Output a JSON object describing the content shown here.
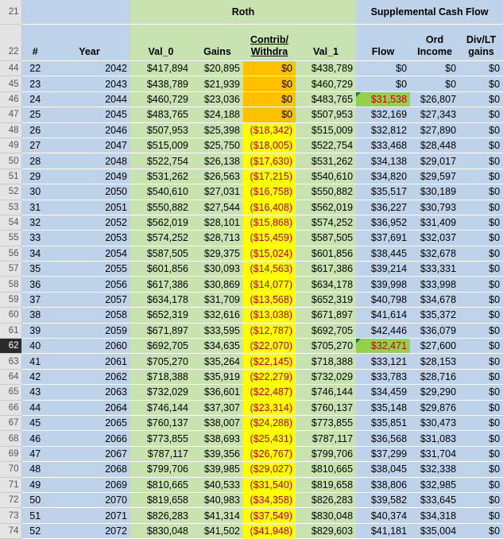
{
  "headers": {
    "row_nums": [
      "21",
      "22"
    ],
    "roth_group": "Roth",
    "supp_group": "Supplemental Cash Flow",
    "cols": [
      "#",
      "Year",
      "Val_0",
      "Gains",
      "Contrib/\nWithdra",
      "Val_1",
      "Flow",
      "Ord\nIncome",
      "Div/LT\ngains"
    ]
  },
  "rows": [
    {
      "r": "44",
      "n": "22",
      "year": "2042",
      "val0": "$417,894",
      "gains": "$20,895",
      "contrib": "$0",
      "val1": "$438,789",
      "flow": "$0",
      "ord": "$0",
      "div": "$0",
      "cfill": "orange"
    },
    {
      "r": "45",
      "n": "23",
      "year": "2043",
      "val0": "$438,789",
      "gains": "$21,939",
      "contrib": "$0",
      "val1": "$460,729",
      "flow": "$0",
      "ord": "$0",
      "div": "$0",
      "cfill": "orange"
    },
    {
      "r": "46",
      "n": "24",
      "year": "2044",
      "val0": "$460,729",
      "gains": "$23,036",
      "contrib": "$0",
      "val1": "$483,765",
      "flow": "$31,538",
      "ord": "$26,807",
      "div": "$0",
      "cfill": "orange",
      "flowhl": true
    },
    {
      "r": "47",
      "n": "25",
      "year": "2045",
      "val0": "$483,765",
      "gains": "$24,188",
      "contrib": "$0",
      "val1": "$507,953",
      "flow": "$32,169",
      "ord": "$27,343",
      "div": "$0",
      "cfill": "orange"
    },
    {
      "r": "48",
      "n": "26",
      "year": "2046",
      "val0": "$507,953",
      "gains": "$25,398",
      "contrib": "($18,342)",
      "val1": "$515,009",
      "flow": "$32,812",
      "ord": "$27,890",
      "div": "$0",
      "cfill": "yellow"
    },
    {
      "r": "49",
      "n": "27",
      "year": "2047",
      "val0": "$515,009",
      "gains": "$25,750",
      "contrib": "($18,005)",
      "val1": "$522,754",
      "flow": "$33,468",
      "ord": "$28,448",
      "div": "$0",
      "cfill": "yellow"
    },
    {
      "r": "50",
      "n": "28",
      "year": "2048",
      "val0": "$522,754",
      "gains": "$26,138",
      "contrib": "($17,630)",
      "val1": "$531,262",
      "flow": "$34,138",
      "ord": "$29,017",
      "div": "$0",
      "cfill": "yellow"
    },
    {
      "r": "51",
      "n": "29",
      "year": "2049",
      "val0": "$531,262",
      "gains": "$26,563",
      "contrib": "($17,215)",
      "val1": "$540,610",
      "flow": "$34,820",
      "ord": "$29,597",
      "div": "$0",
      "cfill": "yellow"
    },
    {
      "r": "52",
      "n": "30",
      "year": "2050",
      "val0": "$540,610",
      "gains": "$27,031",
      "contrib": "($16,758)",
      "val1": "$550,882",
      "flow": "$35,517",
      "ord": "$30,189",
      "div": "$0",
      "cfill": "yellow"
    },
    {
      "r": "53",
      "n": "31",
      "year": "2051",
      "val0": "$550,882",
      "gains": "$27,544",
      "contrib": "($16,408)",
      "val1": "$562,019",
      "flow": "$36,227",
      "ord": "$30,793",
      "div": "$0",
      "cfill": "yellow"
    },
    {
      "r": "54",
      "n": "32",
      "year": "2052",
      "val0": "$562,019",
      "gains": "$28,101",
      "contrib": "($15,868)",
      "val1": "$574,252",
      "flow": "$36,952",
      "ord": "$31,409",
      "div": "$0",
      "cfill": "yellow"
    },
    {
      "r": "55",
      "n": "33",
      "year": "2053",
      "val0": "$574,252",
      "gains": "$28,713",
      "contrib": "($15,459)",
      "val1": "$587,505",
      "flow": "$37,691",
      "ord": "$32,037",
      "div": "$0",
      "cfill": "yellow"
    },
    {
      "r": "56",
      "n": "34",
      "year": "2054",
      "val0": "$587,505",
      "gains": "$29,375",
      "contrib": "($15,024)",
      "val1": "$601,856",
      "flow": "$38,445",
      "ord": "$32,678",
      "div": "$0",
      "cfill": "yellow"
    },
    {
      "r": "57",
      "n": "35",
      "year": "2055",
      "val0": "$601,856",
      "gains": "$30,093",
      "contrib": "($14,563)",
      "val1": "$617,386",
      "flow": "$39,214",
      "ord": "$33,331",
      "div": "$0",
      "cfill": "yellow"
    },
    {
      "r": "58",
      "n": "36",
      "year": "2056",
      "val0": "$617,386",
      "gains": "$30,869",
      "contrib": "($14,077)",
      "val1": "$634,178",
      "flow": "$39,998",
      "ord": "$33,998",
      "div": "$0",
      "cfill": "yellow"
    },
    {
      "r": "59",
      "n": "37",
      "year": "2057",
      "val0": "$634,178",
      "gains": "$31,709",
      "contrib": "($13,568)",
      "val1": "$652,319",
      "flow": "$40,798",
      "ord": "$34,678",
      "div": "$0",
      "cfill": "yellow"
    },
    {
      "r": "60",
      "n": "38",
      "year": "2058",
      "val0": "$652,319",
      "gains": "$32,616",
      "contrib": "($13,038)",
      "val1": "$671,897",
      "flow": "$41,614",
      "ord": "$35,372",
      "div": "$0",
      "cfill": "yellow"
    },
    {
      "r": "61",
      "n": "39",
      "year": "2059",
      "val0": "$671,897",
      "gains": "$33,595",
      "contrib": "($12,787)",
      "val1": "$692,705",
      "flow": "$42,446",
      "ord": "$36,079",
      "div": "$0",
      "cfill": "yellow"
    },
    {
      "r": "62",
      "n": "40",
      "year": "2060",
      "val0": "$692,705",
      "gains": "$34,635",
      "contrib": "($22,070)",
      "val1": "$705,270",
      "flow": "$32,471",
      "ord": "$27,600",
      "div": "$0",
      "cfill": "yellow",
      "flowhl": true,
      "selected": true
    },
    {
      "r": "63",
      "n": "41",
      "year": "2061",
      "val0": "$705,270",
      "gains": "$35,264",
      "contrib": "($22,145)",
      "val1": "$718,388",
      "flow": "$33,121",
      "ord": "$28,153",
      "div": "$0",
      "cfill": "yellow"
    },
    {
      "r": "64",
      "n": "42",
      "year": "2062",
      "val0": "$718,388",
      "gains": "$35,919",
      "contrib": "($22,279)",
      "val1": "$732,029",
      "flow": "$33,783",
      "ord": "$28,716",
      "div": "$0",
      "cfill": "yellow"
    },
    {
      "r": "65",
      "n": "43",
      "year": "2063",
      "val0": "$732,029",
      "gains": "$36,601",
      "contrib": "($22,487)",
      "val1": "$746,144",
      "flow": "$34,459",
      "ord": "$29,290",
      "div": "$0",
      "cfill": "yellow"
    },
    {
      "r": "66",
      "n": "44",
      "year": "2064",
      "val0": "$746,144",
      "gains": "$37,307",
      "contrib": "($23,314)",
      "val1": "$760,137",
      "flow": "$35,148",
      "ord": "$29,876",
      "div": "$0",
      "cfill": "yellow"
    },
    {
      "r": "67",
      "n": "45",
      "year": "2065",
      "val0": "$760,137",
      "gains": "$38,007",
      "contrib": "($24,288)",
      "val1": "$773,855",
      "flow": "$35,851",
      "ord": "$30,473",
      "div": "$0",
      "cfill": "yellow"
    },
    {
      "r": "68",
      "n": "46",
      "year": "2066",
      "val0": "$773,855",
      "gains": "$38,693",
      "contrib": "($25,431)",
      "val1": "$787,117",
      "flow": "$36,568",
      "ord": "$31,083",
      "div": "$0",
      "cfill": "yellow"
    },
    {
      "r": "69",
      "n": "47",
      "year": "2067",
      "val0": "$787,117",
      "gains": "$39,356",
      "contrib": "($26,767)",
      "val1": "$799,706",
      "flow": "$37,299",
      "ord": "$31,704",
      "div": "$0",
      "cfill": "yellow"
    },
    {
      "r": "70",
      "n": "48",
      "year": "2068",
      "val0": "$799,706",
      "gains": "$39,985",
      "contrib": "($29,027)",
      "val1": "$810,665",
      "flow": "$38,045",
      "ord": "$32,338",
      "div": "$0",
      "cfill": "yellow"
    },
    {
      "r": "71",
      "n": "49",
      "year": "2069",
      "val0": "$810,665",
      "gains": "$40,533",
      "contrib": "($31,540)",
      "val1": "$819,658",
      "flow": "$38,806",
      "ord": "$32,985",
      "div": "$0",
      "cfill": "yellow"
    },
    {
      "r": "72",
      "n": "50",
      "year": "2070",
      "val0": "$819,658",
      "gains": "$40,983",
      "contrib": "($34,358)",
      "val1": "$826,283",
      "flow": "$39,582",
      "ord": "$33,645",
      "div": "$0",
      "cfill": "yellow"
    },
    {
      "r": "73",
      "n": "51",
      "year": "2071",
      "val0": "$826,283",
      "gains": "$41,314",
      "contrib": "($37,549)",
      "val1": "$830,048",
      "flow": "$40,374",
      "ord": "$34,318",
      "div": "$0",
      "cfill": "yellow"
    },
    {
      "r": "74",
      "n": "52",
      "year": "2072",
      "val0": "$830,048",
      "gains": "$41,502",
      "contrib": "($41,948)",
      "val1": "$829,603",
      "flow": "$41,181",
      "ord": "$35,004",
      "div": "$0",
      "cfill": "yellow"
    }
  ],
  "colors": {
    "blue_fill": "#bed3ea",
    "green_fill": "#c8e2b0",
    "orange_fill": "#ffc000",
    "yellow_fill": "#ffff00",
    "highlight_green": "#92d050",
    "negative_text": "#c00000"
  }
}
